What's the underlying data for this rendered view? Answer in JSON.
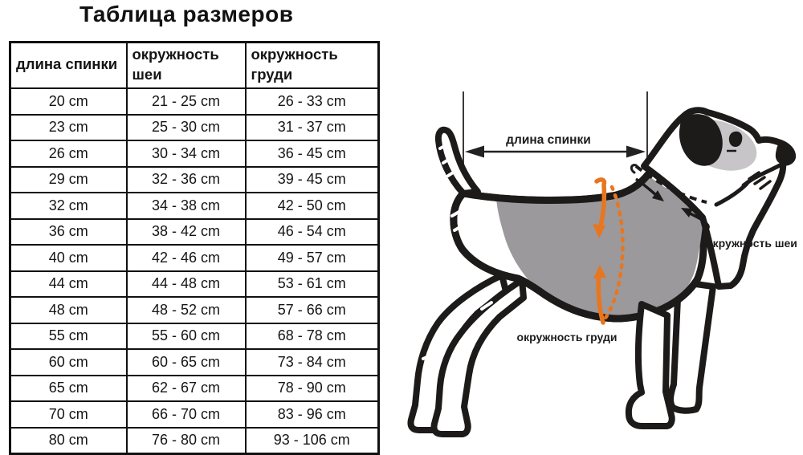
{
  "title": "Таблица размеров",
  "table": {
    "headers": [
      "длина спинки",
      "окружность шеи",
      "окружность груди"
    ],
    "rows": [
      [
        "20 cm",
        "21 - 25 cm",
        "26 - 33 cm"
      ],
      [
        "23 cm",
        "25 - 30 cm",
        "31 - 37 cm"
      ],
      [
        "26 cm",
        "30 - 34 cm",
        "36 - 45 cm"
      ],
      [
        "29 cm",
        "32 - 36 cm",
        "39 - 45 cm"
      ],
      [
        "32 cm",
        "34 - 38 cm",
        "42 - 50 cm"
      ],
      [
        "36 cm",
        "38 - 42 cm",
        "46 - 54 cm"
      ],
      [
        "40 cm",
        "42 - 46 cm",
        "49 - 57 cm"
      ],
      [
        "44 cm",
        "44 - 48 cm",
        "53 - 61 cm"
      ],
      [
        "48 cm",
        "48 - 52 cm",
        "57 - 66 cm"
      ],
      [
        "55 cm",
        "55 - 60 cm",
        "68 - 78 cm"
      ],
      [
        "60 cm",
        "60 - 65 cm",
        "73 - 84 cm"
      ],
      [
        "65 cm",
        "62 - 67 cm",
        "78 - 90 cm"
      ],
      [
        "70 cm",
        "66 - 70 cm",
        "83 - 96 cm"
      ],
      [
        "80 cm",
        "76 - 80 cm",
        "93 - 106 cm"
      ]
    ]
  },
  "diagram": {
    "labels": {
      "back_length": "длина спинки",
      "neck_girth": "окружность шеи",
      "chest_girth": "окружность груди"
    },
    "colors": {
      "accent_orange": "#E8761F",
      "vest_grey": "#9B999B",
      "head_patch_grey": "#C7C5C7",
      "line_black": "#1d1a1a"
    }
  }
}
